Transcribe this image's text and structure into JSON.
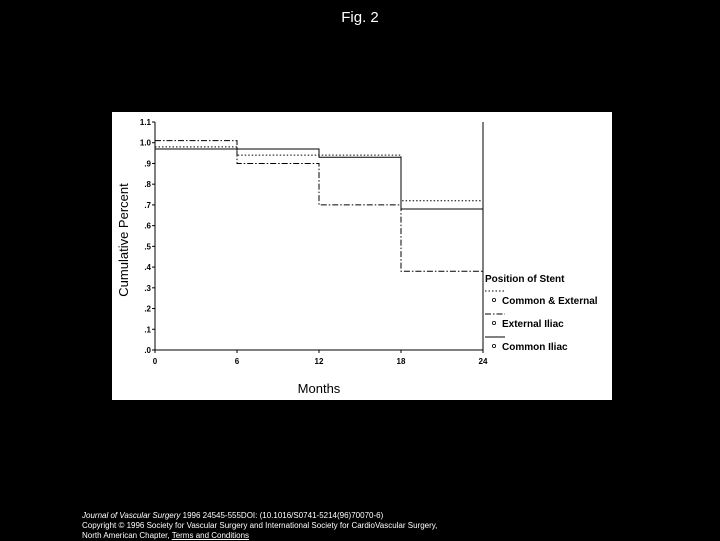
{
  "page": {
    "title": "Fig. 2"
  },
  "citation": {
    "journal": "Journal of Vascular Surgery",
    "details": " 1996 24545-555DOI: (10.1016/S0741-5214(96)70070-6)",
    "copyright": "Copyright © 1996 Society for Vascular Surgery and International Society for CardioVascular Surgery,",
    "chapter": "North American Chapter",
    "terms_link": "Terms and Conditions"
  },
  "colors": {
    "page_background": "#000000",
    "plot_background": "#ffffff",
    "ink": "#000000"
  },
  "chart_data": {
    "type": "line",
    "step": true,
    "title": "",
    "xlabel": "Months",
    "ylabel": "Cumulative Percent",
    "xlim": [
      0,
      24
    ],
    "ylim": [
      0,
      1.1
    ],
    "x_ticks": [
      0,
      6,
      12,
      18,
      24
    ],
    "x_tick_labels": [
      "0",
      "6",
      "12",
      "18",
      "24"
    ],
    "y_ticks": [
      0,
      0.1,
      0.2,
      0.3,
      0.4,
      0.5,
      0.6,
      0.7,
      0.8,
      0.9,
      1.0,
      1.1
    ],
    "y_tick_labels": [
      ".0",
      ".1",
      ".2",
      ".3",
      ".4",
      ".5",
      ".6",
      ".7",
      ".8",
      ".9",
      "1.0",
      "1.1"
    ],
    "grid": false,
    "legend_title": "Position of Stent",
    "legend_position": "right",
    "series": [
      {
        "name": "Common & External",
        "style": "dotted",
        "x": [
          0,
          6,
          12,
          18,
          24
        ],
        "y": [
          0.98,
          0.94,
          0.94,
          0.72,
          0.72
        ]
      },
      {
        "name": "External Iliac",
        "style": "dashdot",
        "x": [
          0,
          6,
          12,
          18,
          24
        ],
        "y": [
          1.01,
          0.9,
          0.7,
          0.38,
          0.38
        ]
      },
      {
        "name": "Common Iliac",
        "style": "solid",
        "x": [
          0,
          6,
          12,
          18,
          24
        ],
        "y": [
          0.97,
          0.97,
          0.93,
          0.68,
          0.68
        ]
      }
    ]
  }
}
